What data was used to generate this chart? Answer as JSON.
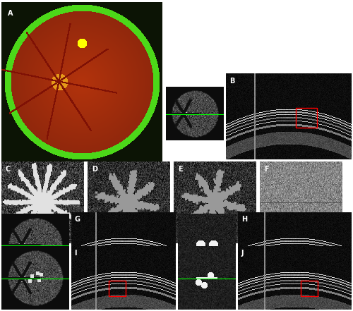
{
  "figure_width": 5.0,
  "figure_height": 4.41,
  "dpi": 100,
  "background_color": "#ffffff",
  "panels": {
    "A": {
      "label": "A",
      "label_color": "#ffffff"
    },
    "B": {
      "label": "B",
      "label_color": "#ffffff"
    },
    "C": {
      "label": "C",
      "label_color": "#ffffff"
    },
    "D": {
      "label": "D",
      "label_color": "#ffffff"
    },
    "E": {
      "label": "E",
      "label_color": "#ffffff"
    },
    "F": {
      "label": "F",
      "label_color": "#ffffff"
    },
    "G": {
      "label": "G",
      "label_color": "#ffffff"
    },
    "H": {
      "label": "H",
      "label_color": "#ffffff"
    },
    "I": {
      "label": "I",
      "label_color": "#ffffff"
    },
    "J": {
      "label": "J",
      "label_color": "#ffffff"
    }
  },
  "green_line_color": "#00ff00",
  "red_box_color": "#ff0000",
  "label_fontsize": 7,
  "label_fontweight": "bold"
}
